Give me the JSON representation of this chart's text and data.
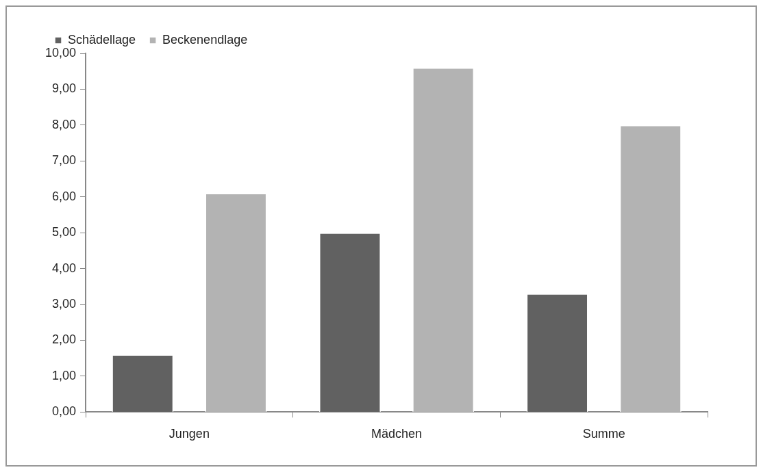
{
  "chart_data": {
    "type": "bar",
    "categories": [
      "Jungen",
      "Mädchen",
      "Summe"
    ],
    "series": [
      {
        "name": "Schädellage",
        "color": "#616161",
        "values": [
          1.6,
          5.0,
          3.3
        ]
      },
      {
        "name": "Beckenendlage",
        "color": "#b3b3b3",
        "values": [
          6.1,
          9.6,
          8.0
        ]
      }
    ],
    "ylim": [
      0,
      10
    ],
    "yticks": [
      {
        "value": 0,
        "label": "0,00"
      },
      {
        "value": 1,
        "label": "1,00"
      },
      {
        "value": 2,
        "label": "2,00"
      },
      {
        "value": 3,
        "label": "3,00"
      },
      {
        "value": 4,
        "label": "4,00"
      },
      {
        "value": 5,
        "label": "5,00"
      },
      {
        "value": 6,
        "label": "6,00"
      },
      {
        "value": 7,
        "label": "7,00"
      },
      {
        "value": 8,
        "label": "8,00"
      },
      {
        "value": 9,
        "label": "9,00"
      },
      {
        "value": 10,
        "label": "10,00"
      }
    ],
    "grid": false,
    "legend": "top left"
  }
}
